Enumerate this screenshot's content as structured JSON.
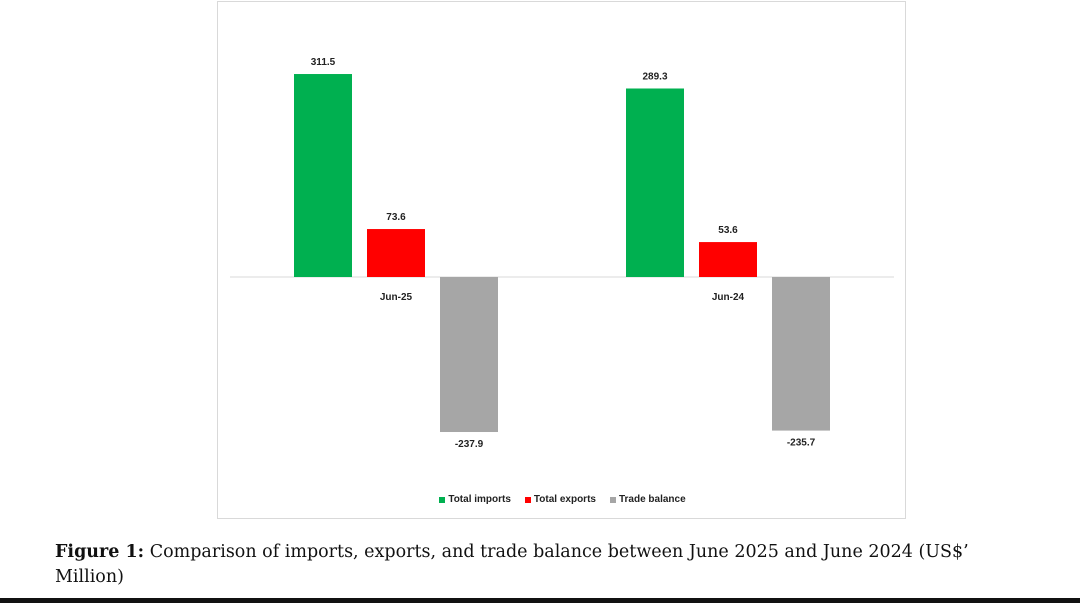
{
  "chart_data": {
    "type": "bar",
    "categories": [
      "Jun-25",
      "Jun-24"
    ],
    "series": [
      {
        "name": "Total imports",
        "color": "#00b050",
        "values": [
          311.5,
          289.3
        ]
      },
      {
        "name": "Total exports",
        "color": "#ff0000",
        "values": [
          73.6,
          53.6
        ]
      },
      {
        "name": "Trade balance",
        "color": "#a6a6a6",
        "values": [
          -237.9,
          -235.7
        ]
      }
    ],
    "value_labels": [
      [
        "311.5",
        "289.3"
      ],
      [
        "73.6",
        "53.6"
      ],
      [
        "-237.9",
        "-235.7"
      ]
    ],
    "legend_position": "bottom",
    "grid": false
  },
  "caption": {
    "label": "Figure 1:",
    "text_line1": "Comparison of imports, exports, and trade balance between June 2025 and June 2024 (US$’",
    "text_line2": "Million)"
  }
}
